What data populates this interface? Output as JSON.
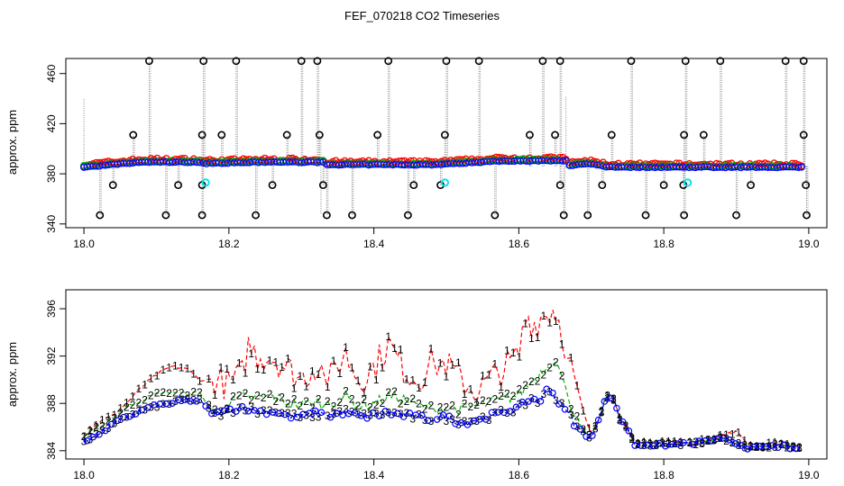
{
  "figure_title": "FEF_070218  CO2 Timeseries",
  "chart_data": [
    {
      "type": "scatter",
      "title": "",
      "xlabel": "",
      "ylabel": "approx. ppm",
      "xlim": [
        17.975,
        19.025
      ],
      "ylim": [
        337,
        472
      ],
      "xticks": [
        18.0,
        18.2,
        18.4,
        18.6,
        18.8,
        19.0
      ],
      "xtick_labels": [
        "18.0",
        "18.2",
        "18.4",
        "18.6",
        "18.8",
        "19.0"
      ],
      "yticks": [
        340,
        380,
        420,
        460
      ],
      "ytick_labels": [
        "340",
        "380",
        "420",
        "460"
      ],
      "series_colors": {
        "red": "#ff0000",
        "green": "#00bb00",
        "blue": "#0000ff",
        "black": "#000000",
        "cyan": "#00e5ee"
      },
      "segments": [
        {
          "t0": 18.0,
          "t1": 18.16,
          "base": 385,
          "rise": 4
        },
        {
          "t0": 18.165,
          "t1": 18.33,
          "base": 388,
          "rise": 1
        },
        {
          "t0": 18.335,
          "t1": 18.48,
          "base": 387,
          "rise": 0
        },
        {
          "t0": 18.485,
          "t1": 18.665,
          "base": 387,
          "rise": 3
        },
        {
          "t0": 18.67,
          "t1": 18.83,
          "base": 386,
          "rise": -1
        },
        {
          "t0": 18.835,
          "t1": 18.99,
          "base": 385,
          "rise": 0
        }
      ],
      "spikes_up": [
        18.09,
        18.165,
        18.21,
        18.3,
        18.322,
        18.42,
        18.5,
        18.545,
        18.633,
        18.657,
        18.755,
        18.83,
        18.878,
        18.968,
        18.993
      ],
      "spikes_mid": [
        18.068,
        18.163,
        18.19,
        18.28,
        18.325,
        18.405,
        18.498,
        18.615,
        18.65,
        18.728,
        18.828,
        18.855,
        18.993
      ],
      "spikes_low": [
        18.04,
        18.13,
        18.163,
        18.26,
        18.33,
        18.455,
        18.492,
        18.657,
        18.715,
        18.8,
        18.827,
        18.92,
        18.996
      ],
      "spikes_down": [
        18.022,
        18.113,
        18.163,
        18.237,
        18.335,
        18.37,
        18.447,
        18.567,
        18.662,
        18.695,
        18.775,
        18.828,
        18.9,
        18.997
      ],
      "cyan_points": [
        [
          18.168,
          373
        ],
        [
          18.498,
          373
        ],
        [
          18.833,
          373
        ]
      ],
      "dropout_bars": [
        [
          18.0,
          385,
          440
        ],
        [
          18.327,
          385,
          348
        ],
        [
          18.665,
          385,
          442
        ]
      ],
      "black_levels": {
        "up": 470,
        "mid": 411,
        "low": 371,
        "down": 347
      }
    },
    {
      "type": "scatter",
      "title": "",
      "xlabel": "",
      "ylabel": "approx. ppm",
      "xlim": [
        17.975,
        19.025
      ],
      "ylim": [
        383.3,
        397.6
      ],
      "xticks": [
        18.0,
        18.2,
        18.4,
        18.6,
        18.8,
        19.0
      ],
      "xtick_labels": [
        "18.0",
        "18.2",
        "18.4",
        "18.6",
        "18.8",
        "19.0"
      ],
      "yticks": [
        384,
        388,
        392,
        396
      ],
      "ytick_labels": [
        "384",
        "388",
        "392",
        "396"
      ],
      "series": [
        {
          "name": "1",
          "color": "#ff0000",
          "values": [
            [
              18.0,
              385.3
            ],
            [
              18.02,
              386.4
            ],
            [
              18.04,
              387.0
            ],
            [
              18.06,
              388.1
            ],
            [
              18.08,
              389.4
            ],
            [
              18.1,
              390.4
            ],
            [
              18.12,
              391.1
            ],
            [
              18.14,
              391.0
            ],
            [
              18.16,
              390.0
            ],
            [
              18.18,
              390.0
            ],
            [
              18.2,
              389.6
            ],
            [
              18.22,
              390.5
            ],
            [
              18.225,
              393.0
            ],
            [
              18.24,
              392.0
            ],
            [
              18.26,
              392.0
            ],
            [
              18.28,
              391.0
            ],
            [
              18.3,
              390.0
            ],
            [
              18.32,
              391.3
            ],
            [
              18.34,
              390.0
            ],
            [
              18.36,
              392.3
            ],
            [
              18.38,
              390.0
            ],
            [
              18.4,
              391.0
            ],
            [
              18.42,
              393.0
            ],
            [
              18.44,
              391.0
            ],
            [
              18.46,
              390.0
            ],
            [
              18.48,
              391.4
            ],
            [
              18.5,
              391.3
            ],
            [
              18.52,
              390.0
            ],
            [
              18.54,
              389.0
            ],
            [
              18.56,
              390.0
            ],
            [
              18.58,
              391.0
            ],
            [
              18.6,
              392.0
            ],
            [
              18.61,
              395.5
            ],
            [
              18.62,
              394.6
            ],
            [
              18.63,
              395.2
            ],
            [
              18.64,
              395.7
            ],
            [
              18.65,
              396.0
            ],
            [
              18.66,
              394.0
            ],
            [
              18.67,
              391.5
            ],
            [
              18.68,
              389.5
            ],
            [
              18.69,
              387.0
            ],
            [
              18.7,
              385.3
            ],
            [
              18.71,
              386.5
            ],
            [
              18.72,
              388.8
            ],
            [
              18.73,
              388.6
            ],
            [
              18.74,
              386.6
            ],
            [
              18.75,
              386.0
            ],
            [
              18.76,
              384.5
            ],
            [
              18.8,
              384.8
            ],
            [
              18.84,
              384.6
            ],
            [
              18.88,
              385.3
            ],
            [
              18.9,
              385.6
            ],
            [
              18.92,
              384.4
            ],
            [
              18.96,
              384.6
            ],
            [
              18.98,
              384.3
            ]
          ]
        },
        {
          "name": "2",
          "color": "#00bb00",
          "values": [
            [
              18.0,
              385.2
            ],
            [
              18.02,
              386.0
            ],
            [
              18.04,
              386.8
            ],
            [
              18.06,
              387.7
            ],
            [
              18.08,
              388.3
            ],
            [
              18.1,
              388.8
            ],
            [
              18.12,
              389.0
            ],
            [
              18.14,
              388.8
            ],
            [
              18.16,
              388.9
            ],
            [
              18.18,
              387.2
            ],
            [
              18.2,
              388.0
            ],
            [
              18.22,
              388.5
            ],
            [
              18.24,
              388.4
            ],
            [
              18.26,
              388.6
            ],
            [
              18.28,
              388.1
            ],
            [
              18.3,
              387.9
            ],
            [
              18.32,
              388.1
            ],
            [
              18.34,
              387.9
            ],
            [
              18.36,
              388.6
            ],
            [
              18.38,
              387.8
            ],
            [
              18.4,
              388.0
            ],
            [
              18.42,
              388.6
            ],
            [
              18.44,
              388.4
            ],
            [
              18.46,
              387.8
            ],
            [
              18.48,
              387.6
            ],
            [
              18.5,
              387.7
            ],
            [
              18.52,
              387.5
            ],
            [
              18.54,
              387.8
            ],
            [
              18.56,
              388.0
            ],
            [
              18.58,
              388.4
            ],
            [
              18.6,
              388.7
            ],
            [
              18.62,
              390.0
            ],
            [
              18.64,
              391.2
            ],
            [
              18.65,
              392.0
            ],
            [
              18.66,
              390.0
            ],
            [
              18.67,
              388.0
            ],
            [
              18.68,
              387.0
            ],
            [
              18.69,
              385.5
            ],
            [
              18.7,
              385.2
            ],
            [
              18.71,
              386.5
            ],
            [
              18.72,
              388.7
            ],
            [
              18.73,
              388.6
            ],
            [
              18.74,
              386.6
            ],
            [
              18.75,
              386.0
            ],
            [
              18.76,
              384.5
            ],
            [
              18.8,
              384.6
            ],
            [
              18.84,
              384.7
            ],
            [
              18.88,
              385.0
            ],
            [
              18.92,
              384.2
            ],
            [
              18.96,
              384.5
            ],
            [
              18.98,
              384.3
            ]
          ]
        },
        {
          "name": "3",
          "color": "#0000ff",
          "values": [
            [
              18.0,
              384.8
            ],
            [
              18.02,
              385.4
            ],
            [
              18.04,
              386.2
            ],
            [
              18.06,
              386.9
            ],
            [
              18.08,
              387.4
            ],
            [
              18.1,
              387.8
            ],
            [
              18.12,
              388.0
            ],
            [
              18.14,
              388.3
            ],
            [
              18.16,
              388.2
            ],
            [
              18.18,
              387.0
            ],
            [
              18.2,
              387.4
            ],
            [
              18.22,
              387.7
            ],
            [
              18.24,
              387.3
            ],
            [
              18.26,
              387.4
            ],
            [
              18.28,
              387.0
            ],
            [
              18.3,
              386.8
            ],
            [
              18.32,
              387.1
            ],
            [
              18.34,
              387.0
            ],
            [
              18.36,
              387.3
            ],
            [
              18.38,
              386.9
            ],
            [
              18.4,
              387.0
            ],
            [
              18.42,
              387.2
            ],
            [
              18.44,
              387.0
            ],
            [
              18.46,
              386.8
            ],
            [
              18.48,
              386.7
            ],
            [
              18.5,
              386.8
            ],
            [
              18.52,
              386.4
            ],
            [
              18.54,
              386.6
            ],
            [
              18.56,
              386.9
            ],
            [
              18.58,
              387.3
            ],
            [
              18.6,
              387.6
            ],
            [
              18.62,
              388.5
            ],
            [
              18.63,
              388.0
            ],
            [
              18.64,
              389.5
            ],
            [
              18.65,
              388.5
            ],
            [
              18.66,
              387.7
            ],
            [
              18.67,
              387.0
            ],
            [
              18.68,
              386.0
            ],
            [
              18.69,
              385.5
            ],
            [
              18.7,
              385.0
            ],
            [
              18.71,
              386.5
            ],
            [
              18.72,
              388.6
            ],
            [
              18.73,
              388.5
            ],
            [
              18.74,
              386.5
            ],
            [
              18.75,
              386.0
            ],
            [
              18.76,
              384.5
            ],
            [
              18.8,
              384.5
            ],
            [
              18.84,
              384.6
            ],
            [
              18.88,
              385.0
            ],
            [
              18.92,
              384.2
            ],
            [
              18.96,
              384.4
            ],
            [
              18.98,
              384.2
            ]
          ]
        }
      ]
    }
  ]
}
